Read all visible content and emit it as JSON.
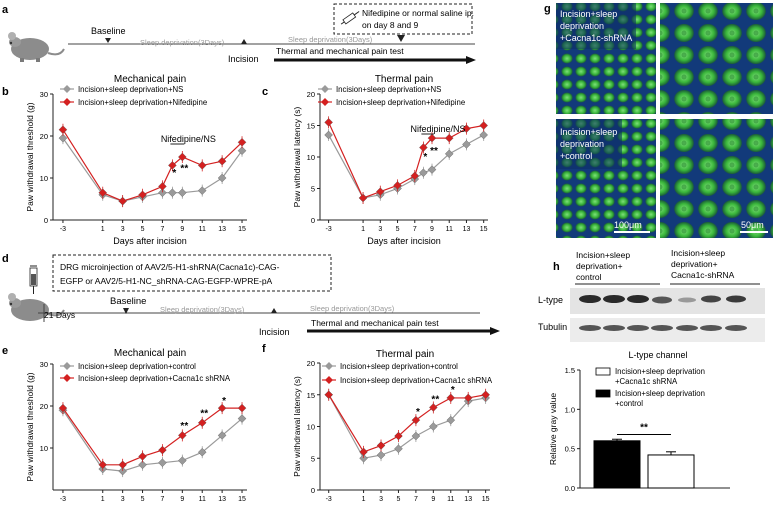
{
  "panels": {
    "a": {
      "letter": "a",
      "baseline": "Baseline",
      "sleep1": "Sleep  deprivation(3Days)",
      "incision": "Incision",
      "sleep2": "Sleep  deprivation(3Days)",
      "test": "Thermal and mechanical pain test",
      "inject_line1": "Nifedipine or normal saline ip.",
      "inject_line2": "on day 8 and 9"
    },
    "d": {
      "letter": "d",
      "box_line1": "DRG microinjection of AAV2/5-H1-shRNA(Cacna1c)-CAG-",
      "box_line2": "EGFP or AAV2/5-H1-NC_shRNA-CAG-EGFP-WPRE-pA",
      "days21": "21 Days",
      "baseline": "Baseline",
      "sleep1": "Sleep  deprivation(3Days)",
      "incision": "Incision",
      "sleep2": "Sleep  deprivation(3Days)",
      "test": "Thermal and mechanical pain test"
    },
    "g": {
      "letter": "g",
      "label_top": [
        "Incision+sleep",
        "deprivation",
        "+Cacna1c-shRNA"
      ],
      "label_bottom": [
        "Incision+sleep",
        "deprivation",
        "+control"
      ],
      "scale_left": "100μm",
      "scale_right": "50μm"
    },
    "h": {
      "letter": "h",
      "group1": [
        "Incision+sleep",
        "deprivation+",
        "control"
      ],
      "group2": [
        "Incision+sleep",
        "deprivation+",
        "Cacna1c-shRNA"
      ],
      "blot1": "L-type",
      "blot2": "Tubulin"
    }
  },
  "chart_data": [
    {
      "id": "b",
      "letter": "b",
      "type": "line",
      "title": "Mechanical pain",
      "xlabel": "Days after incision",
      "ylabel": "Paw withdrawal threshold (g)",
      "x": [
        -3,
        1,
        3,
        5,
        7,
        8,
        9,
        11,
        13,
        15
      ],
      "xticks": [
        "-3",
        "1",
        "3",
        "5",
        "7",
        "9",
        "11",
        "13",
        "15"
      ],
      "xtick_vals": [
        -3,
        1,
        3,
        5,
        7,
        9,
        11,
        13,
        15
      ],
      "xlim": [
        -4,
        15.5
      ],
      "ylim": [
        0,
        30
      ],
      "yticks": [
        0,
        10,
        20,
        30
      ],
      "annotation": "Nifedipine/NS",
      "stars": [
        {
          "x": 8,
          "y": 10.5,
          "text": "*"
        },
        {
          "x": 9,
          "y": 11.5,
          "text": "**"
        }
      ],
      "series": [
        {
          "name": "Incision+sleep deprivation+NS",
          "color": "#9a9a9a",
          "marker": "diamond",
          "values": [
            19.5,
            6.0,
            4.5,
            5.5,
            6.5,
            6.5,
            6.5,
            7.0,
            10.0,
            16.5
          ]
        },
        {
          "name": "Incision+sleep deprivation+Nifedipine",
          "color": "#d42020",
          "marker": "diamond",
          "values": [
            21.5,
            6.5,
            4.5,
            6.0,
            8.0,
            13.0,
            15.0,
            13.0,
            14.0,
            18.5
          ]
        }
      ]
    },
    {
      "id": "c",
      "letter": "c",
      "type": "line",
      "title": "Thermal pain",
      "xlabel": "Days after incision",
      "ylabel": "Paw withdrawal latency (s)",
      "x": [
        -3,
        1,
        3,
        5,
        7,
        8,
        9,
        11,
        13,
        15
      ],
      "xticks": [
        "-3",
        "1",
        "3",
        "5",
        "7",
        "9",
        "11",
        "13",
        "15"
      ],
      "xtick_vals": [
        -3,
        1,
        3,
        5,
        7,
        9,
        11,
        13,
        15
      ],
      "xlim": [
        -4,
        15.5
      ],
      "ylim": [
        0,
        20
      ],
      "yticks": [
        0,
        5,
        10,
        15,
        20
      ],
      "annotation": "Nifedipine/NS",
      "stars": [
        {
          "x": 8,
          "y": 9.5,
          "text": "*"
        },
        {
          "x": 9,
          "y": 10.5,
          "text": "**"
        }
      ],
      "series": [
        {
          "name": "Incision+sleep deprivation+NS",
          "color": "#9a9a9a",
          "marker": "diamond",
          "values": [
            13.5,
            3.5,
            4.0,
            5.0,
            6.5,
            7.5,
            8.0,
            10.5,
            12.0,
            13.5
          ]
        },
        {
          "name": "Incision+sleep deprivation+Nifedipine",
          "color": "#d42020",
          "marker": "diamond",
          "values": [
            15.5,
            3.5,
            4.5,
            5.5,
            7.0,
            11.5,
            13.0,
            13.0,
            14.5,
            15.0
          ]
        }
      ]
    },
    {
      "id": "e",
      "letter": "e",
      "type": "line",
      "title": "Mechanical pain",
      "xlabel": "Days after incision",
      "ylabel": "Paw withdrawal threshold (g)",
      "x": [
        -3,
        1,
        3,
        5,
        7,
        9,
        11,
        13,
        15
      ],
      "xticks": [
        "-3",
        "1",
        "3",
        "5",
        "7",
        "9",
        "11",
        "13",
        "15"
      ],
      "xtick_vals": [
        -3,
        1,
        3,
        5,
        7,
        9,
        11,
        13,
        15
      ],
      "xlim": [
        -4,
        15.5
      ],
      "ylim": [
        0,
        30
      ],
      "yticks": [
        10,
        20,
        30
      ],
      "stars": [
        {
          "x": 9,
          "y": 14.5,
          "text": "**"
        },
        {
          "x": 11,
          "y": 17.5,
          "text": "**"
        },
        {
          "x": 13,
          "y": 20.5,
          "text": "*"
        }
      ],
      "series": [
        {
          "name": "Incision+sleep deprivation+control",
          "color": "#9a9a9a",
          "marker": "diamond",
          "values": [
            19.0,
            5.0,
            4.5,
            6.0,
            6.5,
            7.0,
            9.0,
            13.0,
            17.0
          ]
        },
        {
          "name": "Incision+sleep deprivation+Cacna1c shRNA",
          "color": "#d42020",
          "marker": "diamond",
          "values": [
            19.5,
            6.0,
            6.0,
            8.0,
            9.5,
            13.0,
            16.0,
            19.5,
            19.5
          ]
        }
      ]
    },
    {
      "id": "f",
      "letter": "f",
      "type": "line",
      "title": "Thermal pain",
      "xlabel": "Days after incision",
      "ylabel": "Paw withdrawal latency (s)",
      "x": [
        -3,
        1,
        3,
        5,
        7,
        9,
        11,
        13,
        15
      ],
      "xticks": [
        "-3",
        "1",
        "3",
        "5",
        "7",
        "9",
        "11",
        "13",
        "15"
      ],
      "xtick_vals": [
        -3,
        1,
        3,
        5,
        7,
        9,
        11,
        13,
        15
      ],
      "xlim": [
        -4,
        15.5
      ],
      "ylim": [
        0,
        20
      ],
      "yticks": [
        0,
        5,
        10,
        15,
        20
      ],
      "stars": [
        {
          "x": 7,
          "y": 11.8,
          "text": "*"
        },
        {
          "x": 9,
          "y": 13.8,
          "text": "**"
        },
        {
          "x": 11,
          "y": 15.3,
          "text": "*"
        }
      ],
      "series": [
        {
          "name": "Incision+sleep deprivation+control",
          "color": "#9a9a9a",
          "marker": "diamond",
          "values": [
            15.0,
            5.0,
            5.5,
            6.5,
            8.5,
            10.0,
            11.0,
            14.0,
            14.5
          ]
        },
        {
          "name": "Incision+sleep deprivation+Cacna1c shRNA",
          "color": "#d42020",
          "marker": "diamond",
          "values": [
            15.0,
            6.0,
            7.0,
            8.5,
            11.0,
            13.0,
            14.5,
            14.5,
            15.0
          ]
        }
      ]
    },
    {
      "id": "h",
      "type": "bar",
      "title": "L-type channel",
      "ylabel": "Relative gray value",
      "ylim": [
        0,
        1.5
      ],
      "yticks": [
        "0.0",
        "0.5",
        "1.0",
        "1.5"
      ],
      "ytick_vals": [
        0,
        0.5,
        1.0,
        1.5
      ],
      "categories": [
        "Incision+sleep deprivation +control",
        "Incision+sleep deprivation +Cacna1c shRNA"
      ],
      "values": [
        0.6,
        0.42
      ],
      "errors": [
        0.02,
        0.04
      ],
      "colors": [
        "#000000",
        "#ffffff"
      ],
      "significance": "**",
      "legend": [
        {
          "lines": [
            "Incision+sleep deprivation",
            "+Cacna1c shRNA"
          ],
          "fill": "#ffffff"
        },
        {
          "lines": [
            "Incision+sleep deprivation",
            "+control"
          ],
          "fill": "#000000"
        }
      ]
    }
  ]
}
